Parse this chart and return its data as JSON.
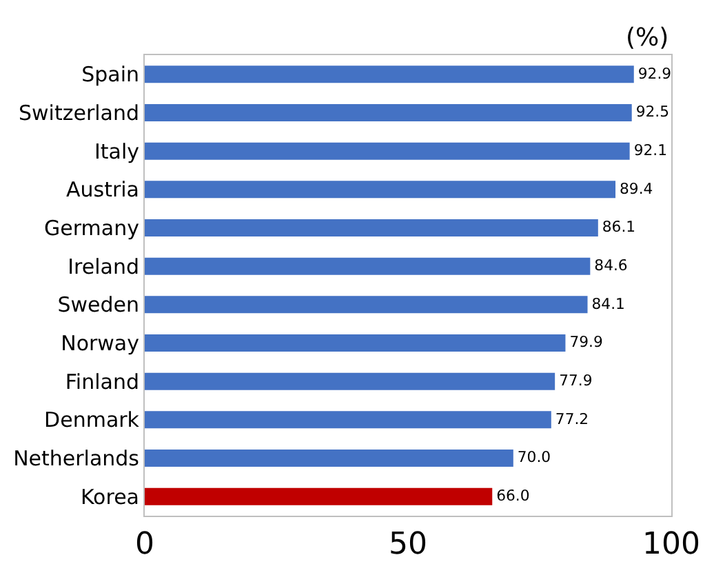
{
  "chart_data": {
    "type": "bar",
    "orientation": "horizontal",
    "categories": [
      "Spain",
      "Switzerland",
      "Italy",
      "Austria",
      "Germany",
      "Ireland",
      "Sweden",
      "Norway",
      "Finland",
      "Denmark",
      "Netherlands",
      "Korea"
    ],
    "values": [
      92.9,
      92.5,
      92.1,
      89.4,
      86.1,
      84.6,
      84.1,
      79.9,
      77.9,
      77.2,
      70.0,
      66.0
    ],
    "colors": [
      "#4472c4",
      "#4472c4",
      "#4472c4",
      "#4472c4",
      "#4472c4",
      "#4472c4",
      "#4472c4",
      "#4472c4",
      "#4472c4",
      "#4472c4",
      "#4472c4",
      "#c00000"
    ],
    "value_labels": [
      "92.9",
      "92.5",
      "92.1",
      "89.4",
      "86.1",
      "84.6",
      "84.1",
      "79.9",
      "77.9",
      "77.2",
      "70.0",
      "66.0"
    ],
    "xlim": [
      0,
      100
    ],
    "xticks": [
      0,
      50,
      100
    ],
    "annotations": [
      "(%)"
    ],
    "grid": false,
    "legend": false
  }
}
